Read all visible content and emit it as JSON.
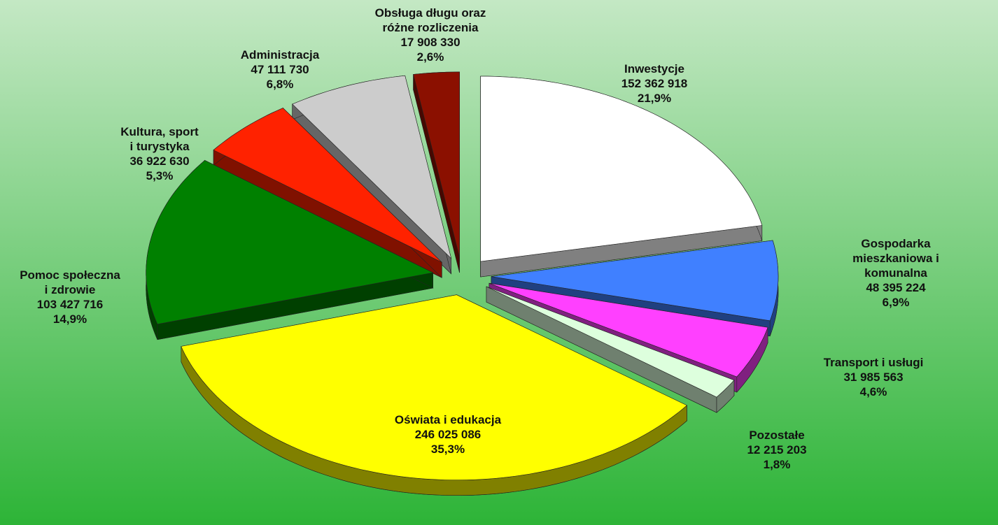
{
  "chart_data": {
    "type": "pie3d",
    "categories": [
      "Inwestycje",
      "Gospodarka mieszkaniowa i\nkomunalna",
      "Transport i usługi",
      "Pozostałe",
      "Oświata i edukacja",
      "Pomoc społeczna\ni zdrowie",
      "Kultura, sport\ni turystyka",
      "Administracja",
      "Obsługa długu oraz\nróżne rozliczenia"
    ],
    "values": [
      152362918,
      48395224,
      31985563,
      12215203,
      246025086,
      103427716,
      36922630,
      47111730,
      17908330
    ],
    "value_labels": [
      "152 362 918",
      "48 395 224",
      "31 985 563",
      "12 215 203",
      "246 025 086",
      "103 427 716",
      "36 922 630",
      "47 111 730",
      "17 908 330"
    ],
    "percents": [
      21.9,
      6.9,
      4.6,
      1.8,
      35.3,
      14.9,
      5.3,
      6.8,
      2.6
    ],
    "percent_labels": [
      "21,9%",
      "6,9%",
      "4,6%",
      "1,8%",
      "35,3%",
      "14,9%",
      "5,3%",
      "6,8%",
      "2,6%"
    ],
    "colors": [
      "#ffffff",
      "#4080ff",
      "#ff40ff",
      "#ddffdd",
      "#ffff00",
      "#008000",
      "#ff2200",
      "#cccccc",
      "#8b1000"
    ]
  }
}
